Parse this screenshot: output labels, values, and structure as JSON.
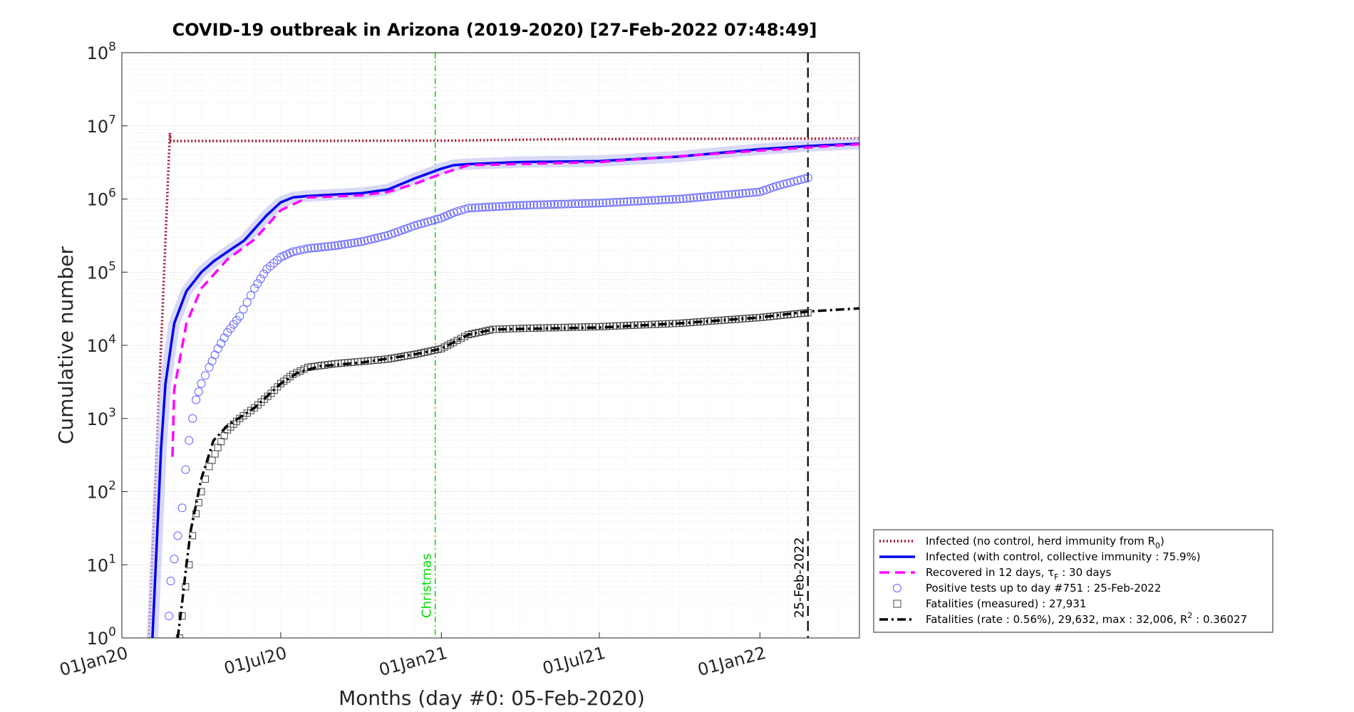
{
  "chart_data": {
    "type": "line",
    "title": "COVID-19 outbreak in Arizona (2019-2020) [27-Feb-2022 07:48:49]",
    "xlabel": "Months (day #0: 05-Feb-2020)",
    "ylabel": "Cumulative number",
    "y_scale": "log",
    "ylim": [
      1,
      100000000
    ],
    "xlim": [
      "2020-01-01",
      "2022-04-25"
    ],
    "grid": true,
    "x_ticks": [
      "01Jan20",
      "01Jul20",
      "01Jan21",
      "01Jul21",
      "01Jan22"
    ],
    "x_tick_dates": [
      "2020-01-01",
      "2020-07-01",
      "2021-01-01",
      "2021-07-01",
      "2022-01-01"
    ],
    "y_tick_exponents": [
      0,
      1,
      2,
      3,
      4,
      5,
      6,
      7,
      8
    ],
    "legend_placement": "bottom-right",
    "annotations": [
      {
        "label": "Christmas",
        "date": "2020-12-25",
        "color": "#00dd00"
      },
      {
        "label": "25-Feb-2022",
        "date": "2022-02-25",
        "color": "#000000"
      }
    ],
    "series": [
      {
        "name": "Infected (no control, herd immunity from R",
        "name_sub": "0",
        "name_end": ")",
        "color": "#a0102a",
        "style": "dotted",
        "x": [
          "2020-02-01",
          "2020-02-25",
          "2020-02-26",
          "2021-01-20",
          "2021-03-01",
          "2021-06-01",
          "2022-04-25"
        ],
        "y": [
          1,
          8000000,
          6200000,
          6300000,
          6400000,
          6600000,
          6700000
        ]
      },
      {
        "name": "Infected (with control, collective immunity : 75.9%)",
        "color": "#0000ee",
        "style": "solid",
        "x": [
          "2020-02-05",
          "2020-02-10",
          "2020-02-15",
          "2020-02-20",
          "2020-03-01",
          "2020-03-15",
          "2020-04-01",
          "2020-04-15",
          "2020-05-01",
          "2020-05-20",
          "2020-06-15",
          "2020-07-01",
          "2020-07-15",
          "2020-08-01",
          "2020-09-01",
          "2020-10-01",
          "2020-11-01",
          "2020-12-01",
          "2021-01-01",
          "2021-01-15",
          "2021-02-01",
          "2021-04-01",
          "2021-07-01",
          "2021-10-01",
          "2022-01-01",
          "2022-02-25",
          "2022-04-25"
        ],
        "y": [
          1,
          20,
          400,
          3000,
          20000,
          55000,
          100000,
          140000,
          190000,
          270000,
          600000,
          900000,
          1050000,
          1100000,
          1150000,
          1200000,
          1350000,
          1900000,
          2600000,
          2900000,
          3000000,
          3200000,
          3300000,
          3800000,
          4800000,
          5300000,
          5700000
        ]
      },
      {
        "name": "Recovered in 12 days, τ",
        "name_sub": "F",
        "name_end": " : 30 days",
        "color": "#ff00ff",
        "style": "dashed",
        "x": [
          "2020-02-28",
          "2020-03-01",
          "2020-03-15",
          "2020-04-01",
          "2020-05-01",
          "2020-06-01",
          "2020-07-01",
          "2020-08-01",
          "2020-10-01",
          "2020-11-01",
          "2020-12-01",
          "2021-01-01",
          "2021-02-01",
          "2021-07-01",
          "2022-01-01",
          "2022-04-25"
        ],
        "y": [
          300,
          2500,
          20000,
          60000,
          150000,
          280000,
          700000,
          1050000,
          1120000,
          1250000,
          1600000,
          2200000,
          2900000,
          3200000,
          4600000,
          5600000
        ]
      },
      {
        "name": "Positive tests up to day #751 : 25-Feb-2022",
        "color": "#6060ff",
        "style": "circles",
        "x": [
          "2020-02-24",
          "2020-02-26",
          "2020-03-01",
          "2020-03-05",
          "2020-03-10",
          "2020-03-14",
          "2020-03-18",
          "2020-03-22",
          "2020-03-26",
          "2020-04-01",
          "2020-04-10",
          "2020-04-20",
          "2020-05-01",
          "2020-05-15",
          "2020-06-01",
          "2020-06-15",
          "2020-07-01",
          "2020-07-15",
          "2020-08-01",
          "2020-09-01",
          "2020-10-01",
          "2020-11-01",
          "2020-12-01",
          "2021-01-01",
          "2021-01-15",
          "2021-02-01",
          "2021-04-01",
          "2021-07-01",
          "2021-10-01",
          "2022-01-01",
          "2022-01-20",
          "2022-02-25"
        ],
        "y": [
          2,
          6,
          12,
          25,
          60,
          200,
          500,
          1000,
          1800,
          3000,
          5000,
          9000,
          15000,
          25000,
          60000,
          110000,
          160000,
          190000,
          210000,
          230000,
          260000,
          320000,
          430000,
          550000,
          650000,
          750000,
          820000,
          880000,
          1000000,
          1250000,
          1500000,
          1950000
        ]
      },
      {
        "name": "Fatalities (measured) : 27,931",
        "color": "#444444",
        "style": "squares",
        "x": [
          "2020-03-07",
          "2020-03-10",
          "2020-03-14",
          "2020-03-18",
          "2020-03-22",
          "2020-03-26",
          "2020-04-01",
          "2020-04-10",
          "2020-04-20",
          "2020-05-01",
          "2020-05-15",
          "2020-06-01",
          "2020-06-20",
          "2020-07-01",
          "2020-07-15",
          "2020-08-01",
          "2020-09-01",
          "2020-10-01",
          "2020-11-01",
          "2020-12-01",
          "2021-01-01",
          "2021-01-15",
          "2021-02-01",
          "2021-03-01",
          "2021-04-01",
          "2021-07-01",
          "2021-10-01",
          "2022-01-01",
          "2022-02-25"
        ],
        "y": [
          1,
          2,
          5,
          10,
          25,
          50,
          100,
          220,
          400,
          700,
          1000,
          1400,
          2200,
          3000,
          4000,
          5000,
          5600,
          6000,
          6500,
          7500,
          9000,
          11000,
          14000,
          16500,
          17000,
          18000,
          20000,
          24000,
          27931
        ]
      },
      {
        "name": "Fatalities (rate : 0.56%), 29,632, max : 32,006, R",
        "name_sup": "2",
        "name_end": " : 0.36027",
        "color": "#000000",
        "style": "dashdot",
        "x": [
          "2020-03-05",
          "2020-03-10",
          "2020-03-15",
          "2020-03-20",
          "2020-04-01",
          "2020-04-15",
          "2020-05-01",
          "2020-06-01",
          "2020-07-01",
          "2020-07-20",
          "2020-08-15",
          "2020-10-01",
          "2020-11-01",
          "2020-12-01",
          "2021-01-01",
          "2021-02-01",
          "2021-03-01",
          "2021-07-01",
          "2021-10-01",
          "2022-01-01",
          "2022-02-25",
          "2022-04-25"
        ],
        "y": [
          1,
          3,
          10,
          30,
          150,
          500,
          800,
          1400,
          3000,
          4200,
          5200,
          5800,
          6600,
          7500,
          9000,
          14000,
          16500,
          17500,
          20000,
          24000,
          29000,
          32006
        ]
      }
    ]
  }
}
